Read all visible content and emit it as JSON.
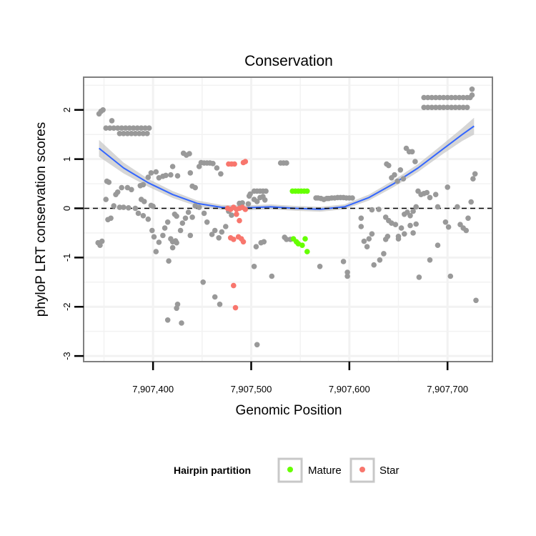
{
  "chart_data": {
    "type": "scatter",
    "title": "Conservation",
    "xlabel": "Genomic Position",
    "ylabel": "phyloP LRT conservation scores",
    "xlim": [
      7907330,
      7907745
    ],
    "ylim": [
      -3.1,
      2.65
    ],
    "x_ticks": [
      7907400,
      7907500,
      7907600,
      7907700
    ],
    "x_tick_labels": [
      "7,907,400",
      "7,907,500",
      "7,907,600",
      "7,907,700"
    ],
    "y_ticks": [
      -3,
      -2,
      -1,
      0,
      1,
      2
    ],
    "y_tick_labels": [
      "-3",
      "-2",
      "-1",
      "0",
      "1",
      "2"
    ],
    "grid": true,
    "reference_line": {
      "y": 0,
      "style": "dashed"
    },
    "colors": {
      "other": "#999999",
      "mature": "#66ff00",
      "star": "#f8766d",
      "smooth": "#3366ff",
      "band": "#bbbbbb"
    },
    "legend": {
      "title": "Hairpin partition",
      "position": "bottom",
      "entries": [
        {
          "label": "Mature",
          "color": "#66ff00"
        },
        {
          "label": "Star",
          "color": "#f8766d"
        }
      ]
    },
    "series": [
      {
        "key": "other",
        "points": [
          [
            7907345,
            1.92
          ],
          [
            7907347,
            1.97
          ],
          [
            7907349,
            2.0
          ],
          [
            7907358,
            1.78
          ],
          [
            7907352,
            1.63
          ],
          [
            7907356,
            1.63
          ],
          [
            7907360,
            1.63
          ],
          [
            7907364,
            1.63
          ],
          [
            7907368,
            1.63
          ],
          [
            7907372,
            1.63
          ],
          [
            7907376,
            1.63
          ],
          [
            7907380,
            1.63
          ],
          [
            7907384,
            1.63
          ],
          [
            7907388,
            1.63
          ],
          [
            7907392,
            1.63
          ],
          [
            7907396,
            1.63
          ],
          [
            7907366,
            1.52
          ],
          [
            7907370,
            1.52
          ],
          [
            7907374,
            1.52
          ],
          [
            7907378,
            1.52
          ],
          [
            7907382,
            1.52
          ],
          [
            7907386,
            1.52
          ],
          [
            7907390,
            1.52
          ],
          [
            7907394,
            1.52
          ],
          [
            7907353,
            0.55
          ],
          [
            7907355,
            0.53
          ],
          [
            7907362,
            0.28
          ],
          [
            7907364,
            0.33
          ],
          [
            7907368,
            0.42
          ],
          [
            7907374,
            0.42
          ],
          [
            7907378,
            0.38
          ],
          [
            7907387,
            0.46
          ],
          [
            7907390,
            0.48
          ],
          [
            7907395,
            0.63
          ],
          [
            7907398,
            0.72
          ],
          [
            7907403,
            0.74
          ],
          [
            7907406,
            0.62
          ],
          [
            7907410,
            0.65
          ],
          [
            7907413,
            0.67
          ],
          [
            7907418,
            0.68
          ],
          [
            7907420,
            0.85
          ],
          [
            7907425,
            0.66
          ],
          [
            7907431,
            1.12
          ],
          [
            7907434,
            1.08
          ],
          [
            7907437,
            1.11
          ],
          [
            7907438,
            0.72
          ],
          [
            7907440,
            0.45
          ],
          [
            7907443,
            0.42
          ],
          [
            7907447,
            0.85
          ],
          [
            7907449,
            0.93
          ],
          [
            7907452,
            0.92
          ],
          [
            7907455,
            0.92
          ],
          [
            7907458,
            0.92
          ],
          [
            7907461,
            0.91
          ],
          [
            7907465,
            0.82
          ],
          [
            7907469,
            0.7
          ],
          [
            7907352,
            0.18
          ],
          [
            7907360,
            0.05
          ],
          [
            7907366,
            0.02
          ],
          [
            7907370,
            0.02
          ],
          [
            7907375,
            0.01
          ],
          [
            7907382,
            0.0
          ],
          [
            7907388,
            0.18
          ],
          [
            7907391,
            0.14
          ],
          [
            7907398,
            0.06
          ],
          [
            7907400,
            0.04
          ],
          [
            7907344,
            -0.7
          ],
          [
            7907346,
            -0.75
          ],
          [
            7907348,
            -0.67
          ],
          [
            7907354,
            -0.23
          ],
          [
            7907357,
            -0.2
          ],
          [
            7907385,
            -0.1
          ],
          [
            7907390,
            -0.15
          ],
          [
            7907395,
            -0.22
          ],
          [
            7907399,
            -0.45
          ],
          [
            7907401,
            -0.58
          ],
          [
            7907403,
            -0.88
          ],
          [
            7907406,
            -0.69
          ],
          [
            7907410,
            -0.55
          ],
          [
            7907412,
            -0.4
          ],
          [
            7907415,
            -0.28
          ],
          [
            7907418,
            -0.62
          ],
          [
            7907420,
            -0.68
          ],
          [
            7907422,
            -0.12
          ],
          [
            7907424,
            -0.16
          ],
          [
            7907428,
            -0.45
          ],
          [
            7907430,
            -0.3
          ],
          [
            7907433,
            -0.2
          ],
          [
            7907436,
            -0.08
          ],
          [
            7907438,
            -0.55
          ],
          [
            7907416,
            -1.07
          ],
          [
            7907420,
            -0.8
          ],
          [
            7907423,
            -0.66
          ],
          [
            7907424,
            -0.7
          ],
          [
            7907425,
            -1.95
          ],
          [
            7907424,
            -2.03
          ],
          [
            7907429,
            -2.33
          ],
          [
            7907415,
            -2.27
          ],
          [
            7907440,
            -0.18
          ],
          [
            7907443,
            0.05
          ],
          [
            7907447,
            0.02
          ],
          [
            7907452,
            -0.1
          ],
          [
            7907455,
            -0.28
          ],
          [
            7907460,
            -0.53
          ],
          [
            7907463,
            -0.45
          ],
          [
            7907467,
            -0.6
          ],
          [
            7907470,
            -0.48
          ],
          [
            7907474,
            -0.37
          ],
          [
            7907477,
            -0.06
          ],
          [
            7907480,
            -0.14
          ],
          [
            7907451,
            -1.5
          ],
          [
            7907463,
            -1.8
          ],
          [
            7907468,
            -1.95
          ],
          [
            7907488,
            0.1
          ],
          [
            7907491,
            0.11
          ],
          [
            7907497,
            0.09
          ],
          [
            7907499,
            0.29
          ],
          [
            7907503,
            0.35
          ],
          [
            7907506,
            0.35
          ],
          [
            7907509,
            0.35
          ],
          [
            7907512,
            0.35
          ],
          [
            7907515,
            0.35
          ],
          [
            7907498,
            0.25
          ],
          [
            7907503,
            0.18
          ],
          [
            7907506,
            0.14
          ],
          [
            7907509,
            0.22
          ],
          [
            7907512,
            0.24
          ],
          [
            7907514,
            0.17
          ],
          [
            7907505,
            -0.78
          ],
          [
            7907510,
            -0.7
          ],
          [
            7907513,
            -0.68
          ],
          [
            7907503,
            -1.18
          ],
          [
            7907521,
            -1.38
          ],
          [
            7907506,
            -2.77
          ],
          [
            7907530,
            0.92
          ],
          [
            7907533,
            0.92
          ],
          [
            7907536,
            0.92
          ],
          [
            7907534,
            -0.59
          ],
          [
            7907536,
            -0.63
          ],
          [
            7907540,
            -0.63
          ],
          [
            7907566,
            0.21
          ],
          [
            7907568,
            0.21
          ],
          [
            7907571,
            0.2
          ],
          [
            7907574,
            0.18
          ],
          [
            7907577,
            0.2
          ],
          [
            7907579,
            0.2
          ],
          [
            7907582,
            0.21
          ],
          [
            7907585,
            0.21
          ],
          [
            7907588,
            0.22
          ],
          [
            7907591,
            0.22
          ],
          [
            7907594,
            0.22
          ],
          [
            7907597,
            0.21
          ],
          [
            7907600,
            0.21
          ],
          [
            7907603,
            0.21
          ],
          [
            7907570,
            -1.18
          ],
          [
            7907594,
            -1.08
          ],
          [
            7907598,
            -1.3
          ],
          [
            7907598,
            -1.38
          ],
          [
            7907612,
            -0.37
          ],
          [
            7907615,
            -0.67
          ],
          [
            7907618,
            -0.78
          ],
          [
            7907620,
            -0.62
          ],
          [
            7907623,
            -0.52
          ],
          [
            7907625,
            -1.15
          ],
          [
            7907631,
            -1.05
          ],
          [
            7907635,
            -0.92
          ],
          [
            7907637,
            -0.63
          ],
          [
            7907639,
            -0.57
          ],
          [
            7907612,
            -0.2
          ],
          [
            7907623,
            -0.03
          ],
          [
            7907630,
            -0.02
          ],
          [
            7907637,
            -0.18
          ],
          [
            7907640,
            -0.25
          ],
          [
            7907643,
            -0.3
          ],
          [
            7907647,
            -0.33
          ],
          [
            7907650,
            -0.57
          ],
          [
            7907653,
            -0.4
          ],
          [
            7907656,
            -0.12
          ],
          [
            7907659,
            -0.08
          ],
          [
            7907662,
            -0.15
          ],
          [
            7907665,
            -0.06
          ],
          [
            7907668,
            0.03
          ],
          [
            7907638,
            0.9
          ],
          [
            7907640,
            0.87
          ],
          [
            7907643,
            0.62
          ],
          [
            7907646,
            0.68
          ],
          [
            7907649,
            0.55
          ],
          [
            7907652,
            0.78
          ],
          [
            7907655,
            0.6
          ],
          [
            7907658,
            1.22
          ],
          [
            7907661,
            1.15
          ],
          [
            7907664,
            1.15
          ],
          [
            7907667,
            0.95
          ],
          [
            7907670,
            0.35
          ],
          [
            7907673,
            0.28
          ],
          [
            7907676,
            0.3
          ],
          [
            7907679,
            0.32
          ],
          [
            7907682,
            0.22
          ],
          [
            7907688,
            0.28
          ],
          [
            7907650,
            -0.62
          ],
          [
            7907656,
            -0.52
          ],
          [
            7907662,
            -0.35
          ],
          [
            7907665,
            -0.5
          ],
          [
            7907668,
            -0.32
          ],
          [
            7907671,
            -1.4
          ],
          [
            7907682,
            -1.05
          ],
          [
            7907690,
            0.03
          ],
          [
            7907698,
            -0.28
          ],
          [
            7907701,
            -0.38
          ],
          [
            7907703,
            -1.38
          ],
          [
            7907710,
            0.03
          ],
          [
            7907713,
            -0.33
          ],
          [
            7907716,
            -0.4
          ],
          [
            7907719,
            -0.45
          ],
          [
            7907721,
            -0.2
          ],
          [
            7907724,
            0.13
          ],
          [
            7907726,
            0.6
          ],
          [
            7907728,
            0.7
          ],
          [
            7907729,
            -1.87
          ],
          [
            7907700,
            0.43
          ],
          [
            7907690,
            -0.75
          ],
          [
            7907676,
            2.25
          ],
          [
            7907680,
            2.25
          ],
          [
            7907684,
            2.25
          ],
          [
            7907688,
            2.25
          ],
          [
            7907692,
            2.25
          ],
          [
            7907696,
            2.25
          ],
          [
            7907700,
            2.25
          ],
          [
            7907704,
            2.25
          ],
          [
            7907708,
            2.25
          ],
          [
            7907712,
            2.25
          ],
          [
            7907716,
            2.25
          ],
          [
            7907720,
            2.25
          ],
          [
            7907723,
            2.25
          ],
          [
            7907676,
            2.05
          ],
          [
            7907680,
            2.05
          ],
          [
            7907684,
            2.05
          ],
          [
            7907688,
            2.05
          ],
          [
            7907692,
            2.05
          ],
          [
            7907696,
            2.05
          ],
          [
            7907700,
            2.05
          ],
          [
            7907704,
            2.05
          ],
          [
            7907708,
            2.05
          ],
          [
            7907712,
            2.05
          ],
          [
            7907716,
            2.05
          ],
          [
            7907720,
            2.05
          ],
          [
            7907725,
            2.42
          ],
          [
            7907725,
            2.3
          ]
        ]
      },
      {
        "key": "star",
        "points": [
          [
            7907477,
            0.9
          ],
          [
            7907480,
            0.9
          ],
          [
            7907483,
            0.9
          ],
          [
            7907492,
            0.93
          ],
          [
            7907494,
            0.95
          ],
          [
            7907476,
            0.0
          ],
          [
            7907479,
            -0.02
          ],
          [
            7907482,
            0.02
          ],
          [
            7907485,
            -0.02
          ],
          [
            7907488,
            0.0
          ],
          [
            7907491,
            0.02
          ],
          [
            7907494,
            -0.02
          ],
          [
            7907479,
            -0.6
          ],
          [
            7907482,
            -0.63
          ],
          [
            7907487,
            -0.58
          ],
          [
            7907490,
            -0.62
          ],
          [
            7907492,
            -0.68
          ],
          [
            7907485,
            -0.12
          ],
          [
            7907488,
            -0.25
          ],
          [
            7907482,
            -1.57
          ],
          [
            7907484,
            -2.02
          ]
        ]
      },
      {
        "key": "mature",
        "points": [
          [
            7907542,
            0.35
          ],
          [
            7907545,
            0.35
          ],
          [
            7907548,
            0.35
          ],
          [
            7907551,
            0.35
          ],
          [
            7907554,
            0.35
          ],
          [
            7907557,
            0.35
          ],
          [
            7907543,
            -0.62
          ],
          [
            7907546,
            -0.68
          ],
          [
            7907548,
            -0.72
          ],
          [
            7907552,
            -0.75
          ],
          [
            7907555,
            -0.62
          ],
          [
            7907557,
            -0.88
          ]
        ]
      }
    ],
    "smooth_line": {
      "x": [
        7907345,
        7907370,
        7907395,
        7907420,
        7907445,
        7907470,
        7907495,
        7907520,
        7907545,
        7907570,
        7907595,
        7907620,
        7907645,
        7907670,
        7907695,
        7907715,
        7907727
      ],
      "y": [
        1.22,
        0.82,
        0.52,
        0.28,
        0.1,
        0.02,
        0.01,
        0.03,
        0.0,
        -0.02,
        0.03,
        0.22,
        0.5,
        0.82,
        1.2,
        1.5,
        1.67
      ],
      "se": [
        0.17,
        0.11,
        0.08,
        0.07,
        0.06,
        0.05,
        0.05,
        0.05,
        0.05,
        0.05,
        0.05,
        0.06,
        0.07,
        0.08,
        0.1,
        0.13,
        0.17
      ]
    }
  }
}
